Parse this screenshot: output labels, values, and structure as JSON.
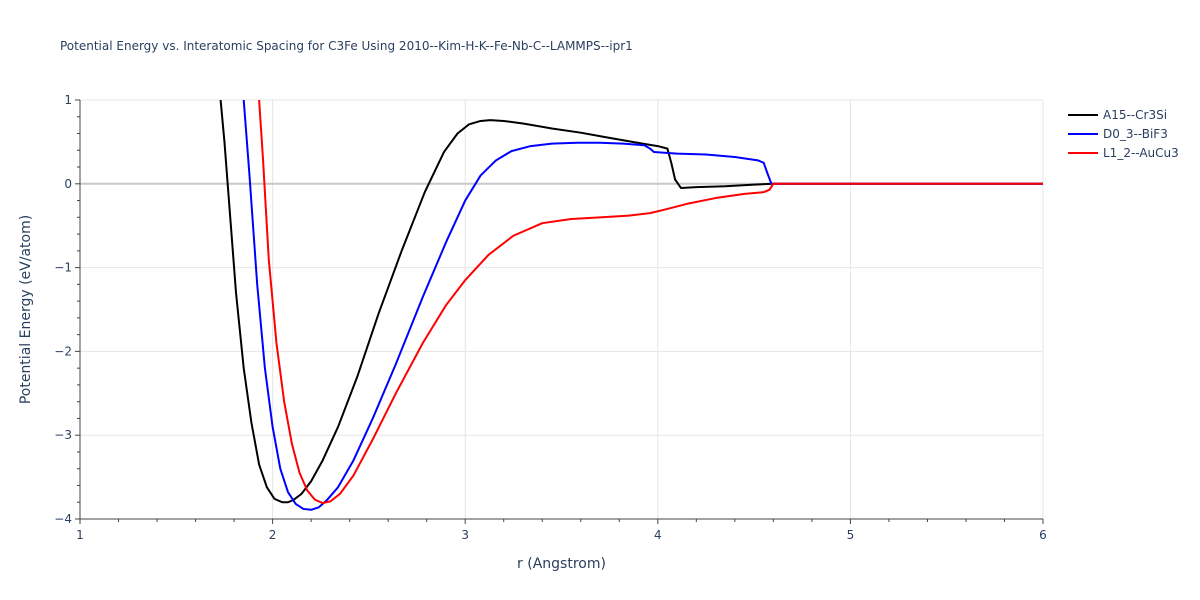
{
  "chart_data": {
    "type": "line",
    "title": "Potential Energy vs. Interatomic Spacing for C3Fe Using 2010--Kim-H-K--Fe-Nb-C--LAMMPS--ipr1",
    "xlabel": "r (Angstrom)",
    "ylabel": "Potential Energy (eV/atom)",
    "xlim": [
      1,
      6
    ],
    "ylim": [
      -4,
      1
    ],
    "xticks": [
      1,
      2,
      3,
      4,
      5,
      6
    ],
    "yticks": [
      1,
      0,
      -1,
      -2,
      -3,
      -4
    ],
    "xtick_labels": [
      "1",
      "2",
      "3",
      "4",
      "5",
      "6"
    ],
    "ytick_labels": [
      "1",
      "0",
      "−1",
      "−2",
      "−3",
      "−4"
    ],
    "grid": true,
    "legend_position": "top-right",
    "series": [
      {
        "name": "A15--Cr3Si",
        "color": "#000000",
        "x": [
          1.73,
          1.75,
          1.78,
          1.81,
          1.85,
          1.89,
          1.93,
          1.97,
          2.01,
          2.05,
          2.08,
          2.11,
          2.15,
          2.2,
          2.26,
          2.34,
          2.44,
          2.55,
          2.67,
          2.79,
          2.89,
          2.96,
          3.02,
          3.08,
          3.13,
          3.2,
          3.3,
          3.45,
          3.6,
          3.72,
          3.82,
          3.92,
          4.0,
          4.05,
          4.07,
          4.09,
          4.12,
          4.2,
          4.35,
          4.5,
          4.6,
          6.0
        ],
        "y": [
          1.0,
          0.5,
          -0.4,
          -1.3,
          -2.2,
          -2.85,
          -3.35,
          -3.62,
          -3.76,
          -3.8,
          -3.8,
          -3.77,
          -3.7,
          -3.55,
          -3.3,
          -2.9,
          -2.3,
          -1.55,
          -0.8,
          -0.1,
          0.38,
          0.6,
          0.71,
          0.75,
          0.76,
          0.75,
          0.72,
          0.66,
          0.61,
          0.56,
          0.52,
          0.48,
          0.45,
          0.42,
          0.25,
          0.05,
          -0.05,
          -0.04,
          -0.03,
          -0.01,
          0.0,
          0.0
        ]
      },
      {
        "name": "D0_3--BiF3",
        "color": "#0000ff",
        "x": [
          1.85,
          1.88,
          1.92,
          1.96,
          2.0,
          2.04,
          2.08,
          2.12,
          2.16,
          2.2,
          2.24,
          2.28,
          2.34,
          2.42,
          2.52,
          2.64,
          2.78,
          2.9,
          3.0,
          3.08,
          3.16,
          3.24,
          3.34,
          3.45,
          3.58,
          3.7,
          3.82,
          3.93,
          3.96,
          3.98,
          4.1,
          4.25,
          4.4,
          4.52,
          4.55,
          4.57,
          4.59,
          6.0
        ],
        "y": [
          1.0,
          0.1,
          -1.2,
          -2.2,
          -2.9,
          -3.4,
          -3.68,
          -3.82,
          -3.88,
          -3.89,
          -3.86,
          -3.78,
          -3.62,
          -3.3,
          -2.8,
          -2.15,
          -1.35,
          -0.7,
          -0.2,
          0.1,
          0.28,
          0.39,
          0.45,
          0.48,
          0.49,
          0.49,
          0.48,
          0.46,
          0.42,
          0.38,
          0.36,
          0.35,
          0.32,
          0.28,
          0.25,
          0.12,
          0.0,
          0.0
        ]
      },
      {
        "name": "L1_2--AuCu3",
        "color": "#ff0000",
        "x": [
          1.93,
          1.95,
          1.98,
          2.02,
          2.06,
          2.1,
          2.14,
          2.18,
          2.22,
          2.26,
          2.3,
          2.35,
          2.42,
          2.52,
          2.64,
          2.78,
          2.9,
          3.0,
          3.12,
          3.25,
          3.4,
          3.55,
          3.7,
          3.85,
          3.96,
          4.05,
          4.15,
          4.3,
          4.45,
          4.55,
          4.58,
          4.6,
          6.0
        ],
        "y": [
          1.0,
          0.3,
          -0.9,
          -1.9,
          -2.6,
          -3.1,
          -3.45,
          -3.66,
          -3.77,
          -3.81,
          -3.79,
          -3.7,
          -3.48,
          -3.05,
          -2.5,
          -1.9,
          -1.45,
          -1.15,
          -0.85,
          -0.62,
          -0.47,
          -0.42,
          -0.4,
          -0.38,
          -0.35,
          -0.3,
          -0.24,
          -0.17,
          -0.12,
          -0.1,
          -0.07,
          0.0,
          0.0
        ]
      }
    ]
  }
}
